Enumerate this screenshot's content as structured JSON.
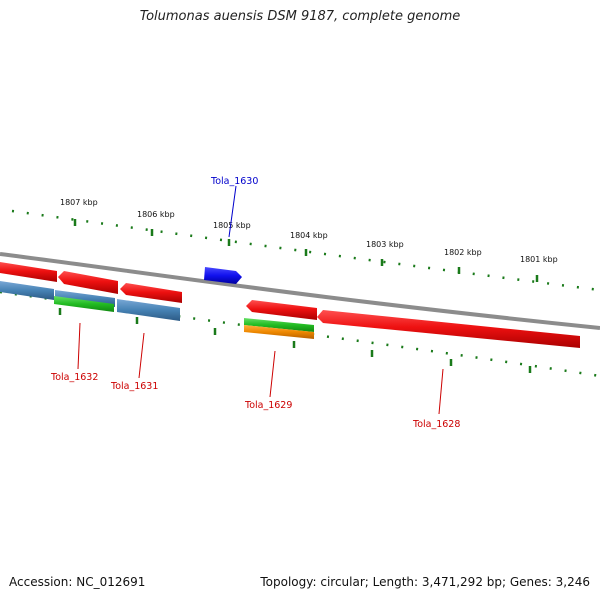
{
  "title": "Tolumonas auensis DSM 9187, complete genome",
  "footer": {
    "accession": "Accession: NC_012691",
    "summary": "Topology: circular; Length: 3,471,292 bp; Genes: 3,246"
  },
  "colors": {
    "backbone": "#8c8c8c",
    "tick": "#1a7a1a",
    "gene_label_red": "#cc0000",
    "gene_label_blue": "#0000cc",
    "red_feature": "#ee1111",
    "blue_feature": "#1111ee",
    "steel_feature": "#4682b4",
    "green_feature": "#22bb22",
    "orange_feature": "#ee8800"
  },
  "scale_labels": [
    "1807 kbp",
    "1806 kbp",
    "1805 kbp",
    "1804 kbp",
    "1803 kbp",
    "1802 kbp",
    "1801 kbp"
  ],
  "gene_labels": [
    "Tola_1630",
    "Tola_1632",
    "Tola_1631",
    "Tola_1629",
    "Tola_1628"
  ]
}
